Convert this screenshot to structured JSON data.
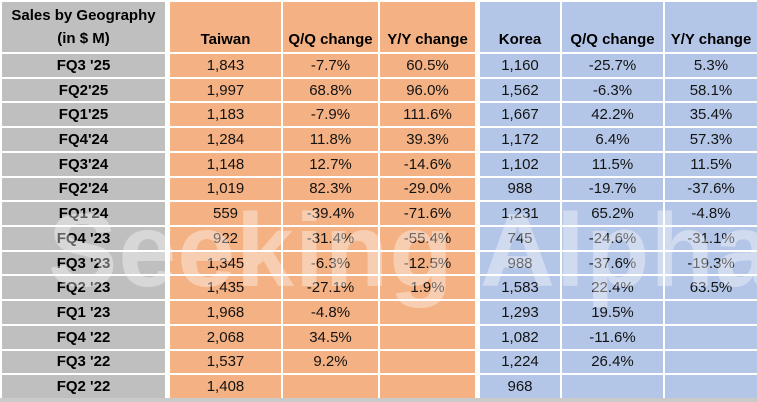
{
  "watermark": {
    "text": "Seeking Alpha",
    "alpha_glyph": "α"
  },
  "chart_data": {
    "type": "table",
    "title": "Sales by Geography (in $ M)",
    "title_line1": "Sales by Geography",
    "title_line2": "(in $ M)",
    "columns": [
      "Taiwan",
      "Q/Q change",
      "Y/Y change",
      "Korea",
      "Q/Q change",
      "Y/Y change"
    ],
    "rows": [
      {
        "label": "FQ3 '25",
        "values": [
          "1,843",
          "-7.7%",
          "60.5%",
          "1,160",
          "-25.7%",
          "5.3%"
        ]
      },
      {
        "label": "FQ2'25",
        "values": [
          "1,997",
          "68.8%",
          "96.0%",
          "1,562",
          "-6.3%",
          "58.1%"
        ]
      },
      {
        "label": "FQ1'25",
        "values": [
          "1,183",
          "-7.9%",
          "111.6%",
          "1,667",
          "42.2%",
          "35.4%"
        ]
      },
      {
        "label": "FQ4'24",
        "values": [
          "1,284",
          "11.8%",
          "39.3%",
          "1,172",
          "6.4%",
          "57.3%"
        ]
      },
      {
        "label": "FQ3'24",
        "values": [
          "1,148",
          "12.7%",
          "-14.6%",
          "1,102",
          "11.5%",
          "11.5%"
        ]
      },
      {
        "label": "FQ2'24",
        "values": [
          "1,019",
          "82.3%",
          "-29.0%",
          "988",
          "-19.7%",
          "-37.6%"
        ]
      },
      {
        "label": "FQ1'24",
        "values": [
          "559",
          "-39.4%",
          "-71.6%",
          "1,231",
          "65.2%",
          "-4.8%"
        ]
      },
      {
        "label": "FQ4 '23",
        "values": [
          "922",
          "-31.4%",
          "-55.4%",
          "745",
          "-24.6%",
          "-31.1%"
        ]
      },
      {
        "label": "FQ3 '23",
        "values": [
          "1,345",
          "-6.3%",
          "-12.5%",
          "988",
          "-37.6%",
          "-19.3%"
        ]
      },
      {
        "label": "FQ2 '23",
        "values": [
          "1,435",
          "-27.1%",
          "1.9%",
          "1,583",
          "22.4%",
          "63.5%"
        ]
      },
      {
        "label": "FQ1 '23",
        "values": [
          "1,968",
          "-4.8%",
          "",
          "1,293",
          "19.5%",
          ""
        ]
      },
      {
        "label": "FQ4 '22",
        "values": [
          "2,068",
          "34.5%",
          "",
          "1,082",
          "-11.6%",
          ""
        ]
      },
      {
        "label": "FQ3 '22",
        "values": [
          "1,537",
          "9.2%",
          "",
          "1,224",
          "26.4%",
          ""
        ]
      },
      {
        "label": "FQ2 '22",
        "values": [
          "1,408",
          "",
          "",
          "968",
          "",
          ""
        ]
      }
    ],
    "colors": {
      "label_bg": "#BFBFBF",
      "taiwan_bg": "#F4B183",
      "korea_bg": "#B4C6E7",
      "gridline": "#FFFFFF",
      "text": "#000000"
    },
    "layout": {
      "grid": "on",
      "header_align": "bottom-center",
      "cell_align": "center"
    }
  }
}
